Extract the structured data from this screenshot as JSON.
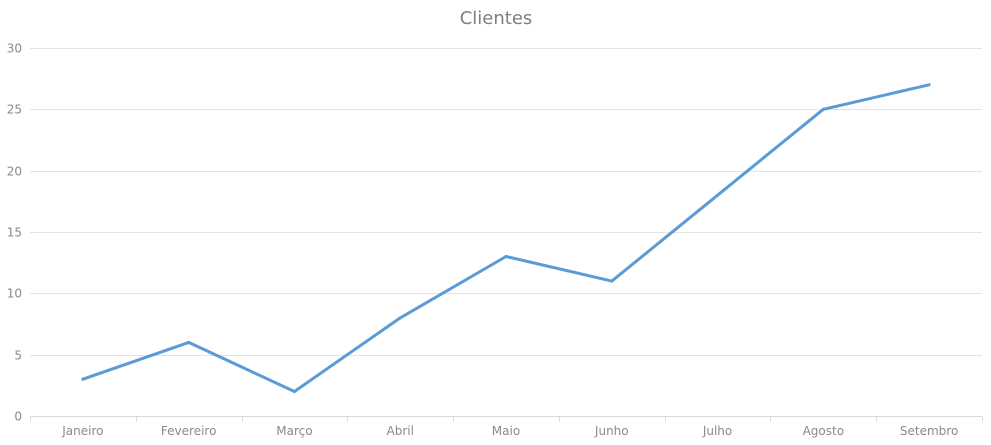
{
  "chart_data": {
    "type": "line",
    "title": "Clientes",
    "xlabel": "",
    "ylabel": "",
    "categories": [
      "Janeiro",
      "Fevereiro",
      "Março",
      "Abril",
      "Maio",
      "Junho",
      "Julho",
      "Agosto",
      "Setembro"
    ],
    "series": [
      {
        "values": [
          3,
          6,
          2,
          8,
          13,
          11,
          18,
          25,
          27
        ]
      }
    ],
    "ylim": [
      0,
      30
    ],
    "yticks": [
      0,
      5,
      10,
      15,
      20,
      25,
      30
    ],
    "grid": true,
    "legend": "none",
    "colors": {
      "series": "#5b9bd5",
      "grid": "#e4e4e4",
      "text": "#808080"
    }
  }
}
